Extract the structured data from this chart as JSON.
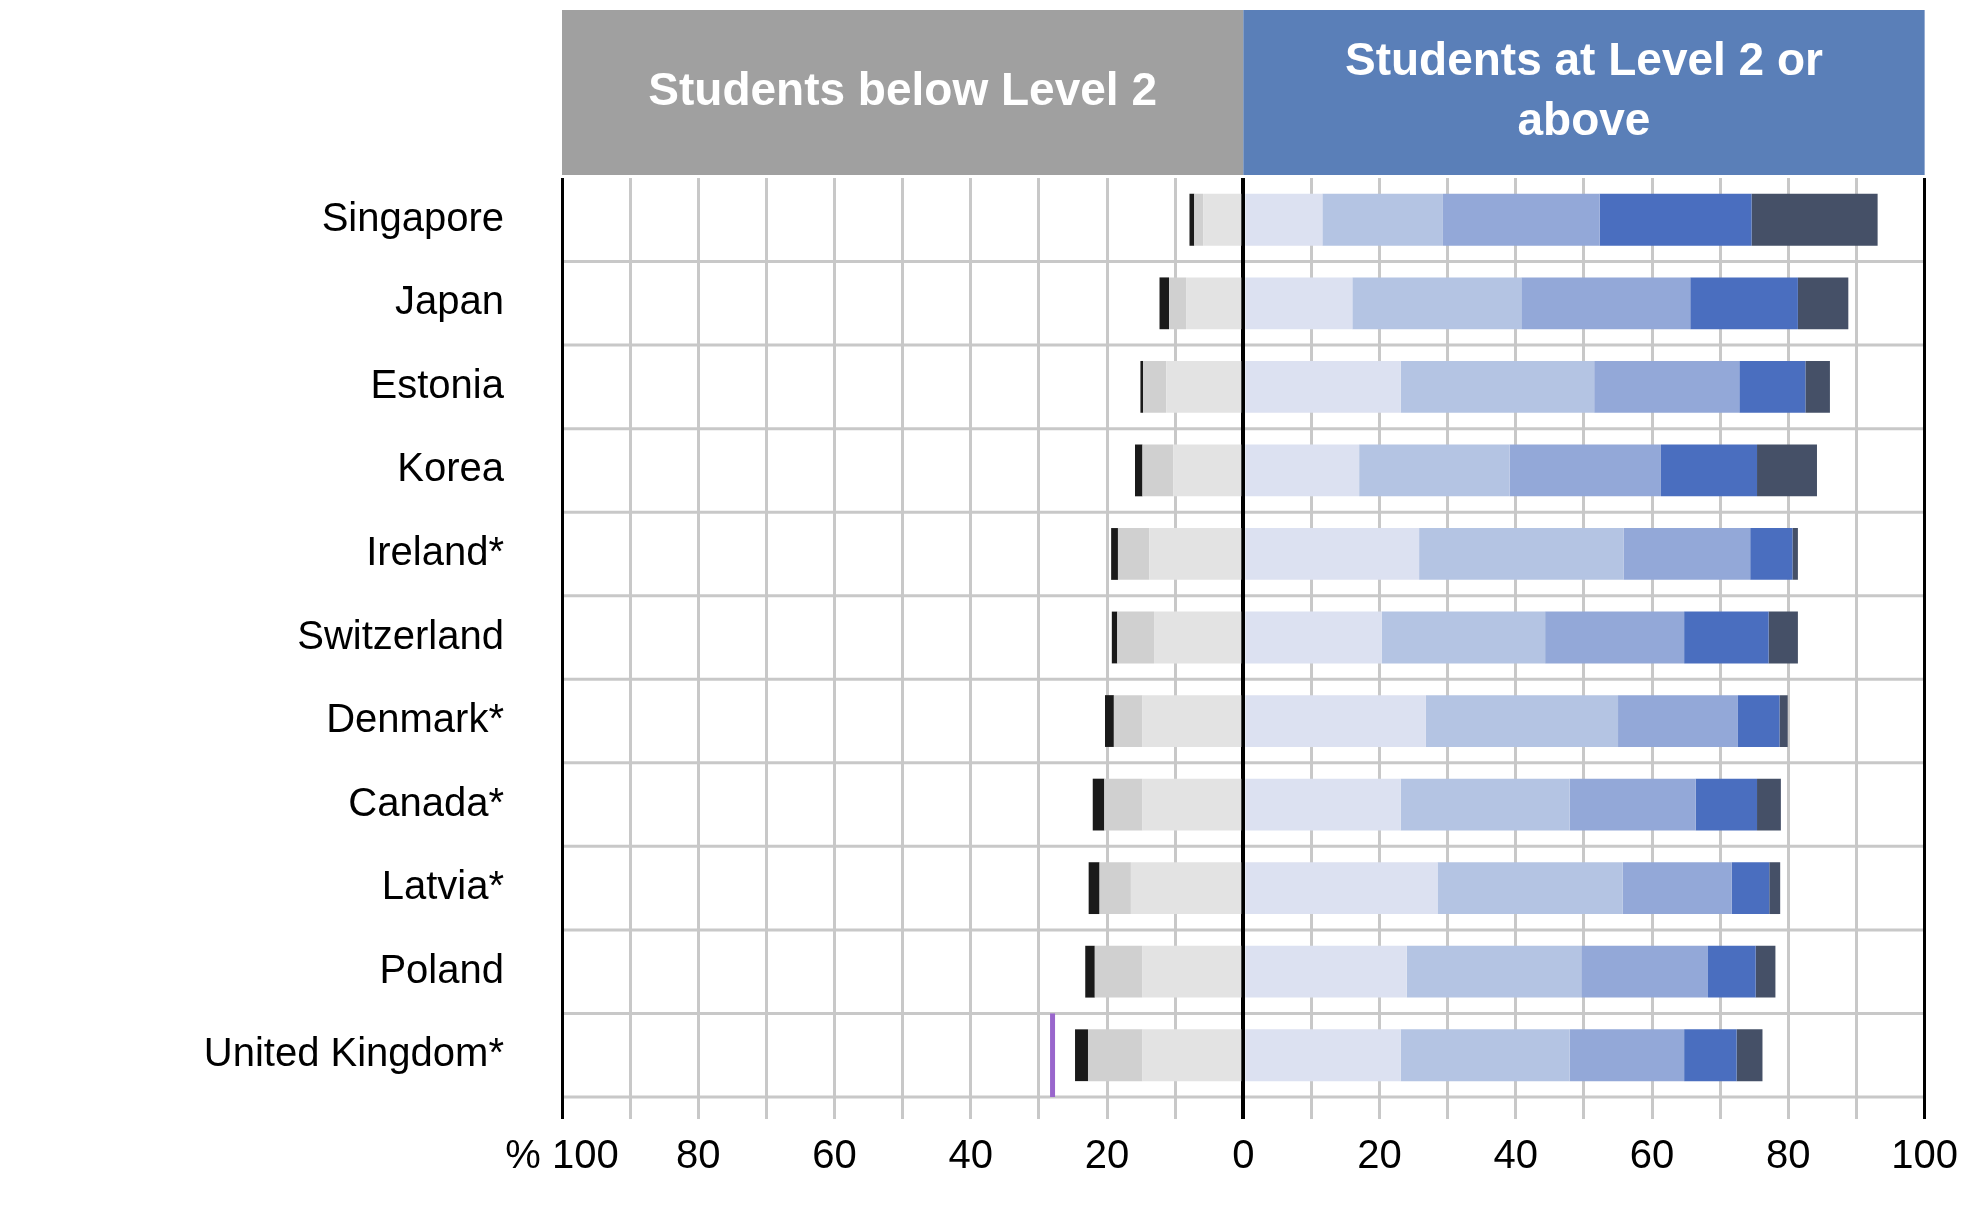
{
  "chart_data": {
    "type": "bar",
    "orientation": "horizontal",
    "stacked": true,
    "annotations": [
      "Students below Level 2",
      "Students at Level 2 or above"
    ],
    "categories": [
      "Singapore",
      "Japan",
      "Estonia",
      "Korea",
      "Ireland*",
      "Switzerland",
      "Denmark*",
      "Canada*",
      "Latvia*",
      "Poland",
      "United Kingdom*"
    ],
    "series": [
      {
        "color": "#e3e3e3",
        "values": [
          -5.9,
          -8.4,
          -11.3,
          -10.3,
          -13.8,
          -13.1,
          -14.8,
          -14.8,
          -16.5,
          -14.8,
          -14.8
        ]
      },
      {
        "color": "#d0d0d0",
        "values": [
          -1.3,
          -2.5,
          -3.4,
          -4.5,
          -4.6,
          -5.4,
          -4.2,
          -5.6,
          -4.6,
          -7.0,
          -8.0
        ]
      },
      {
        "color": "#1a1a1a",
        "values": [
          -0.7,
          -1.4,
          -0.4,
          -1.1,
          -1.0,
          -0.8,
          -1.3,
          -1.7,
          -1.6,
          -1.4,
          -1.9
        ]
      },
      {
        "color": "#dce1f1",
        "values": [
          11.6,
          16.0,
          23.1,
          17.0,
          25.8,
          20.3,
          26.8,
          23.1,
          28.5,
          24.0,
          23.1
        ]
      },
      {
        "color": "#b4c4e3",
        "values": [
          17.7,
          24.8,
          28.4,
          22.1,
          30.0,
          24.0,
          28.2,
          24.8,
          27.2,
          25.6,
          24.8
        ]
      },
      {
        "color": "#93a8d8",
        "values": [
          23.0,
          24.8,
          21.3,
          22.2,
          18.6,
          20.4,
          17.6,
          18.5,
          16.0,
          18.6,
          16.8
        ]
      },
      {
        "color": "#4a6ebf",
        "values": [
          22.3,
          15.8,
          9.7,
          14.1,
          6.2,
          12.4,
          6.1,
          9.0,
          5.5,
          7.0,
          7.7
        ]
      },
      {
        "color": "#455067",
        "values": [
          18.5,
          7.4,
          3.6,
          8.8,
          0.8,
          4.3,
          1.2,
          3.5,
          1.6,
          2.9,
          3.8
        ]
      }
    ],
    "xlim": [
      -100,
      100
    ],
    "xticks": [
      {
        "value": -100,
        "label": "% 100"
      },
      {
        "value": -90,
        "label": null
      },
      {
        "value": -80,
        "label": "80"
      },
      {
        "value": -70,
        "label": null
      },
      {
        "value": -60,
        "label": "60"
      },
      {
        "value": -50,
        "label": null
      },
      {
        "value": -40,
        "label": "40"
      },
      {
        "value": -30,
        "label": null
      },
      {
        "value": -20,
        "label": "20"
      },
      {
        "value": -10,
        "label": null
      },
      {
        "value": 0,
        "label": "0"
      },
      {
        "value": 10,
        "label": null
      },
      {
        "value": 20,
        "label": "20"
      },
      {
        "value": 30,
        "label": null
      },
      {
        "value": 40,
        "label": "40"
      },
      {
        "value": 50,
        "label": null
      },
      {
        "value": 60,
        "label": "60"
      },
      {
        "value": 70,
        "label": null
      },
      {
        "value": 80,
        "label": "80"
      },
      {
        "value": 90,
        "label": null
      },
      {
        "value": 100,
        "label": "100"
      }
    ],
    "ref_lines": [
      {
        "axis": "x",
        "value": -28,
        "color": "#9966cc"
      }
    ],
    "grid": true,
    "legend": false
  }
}
